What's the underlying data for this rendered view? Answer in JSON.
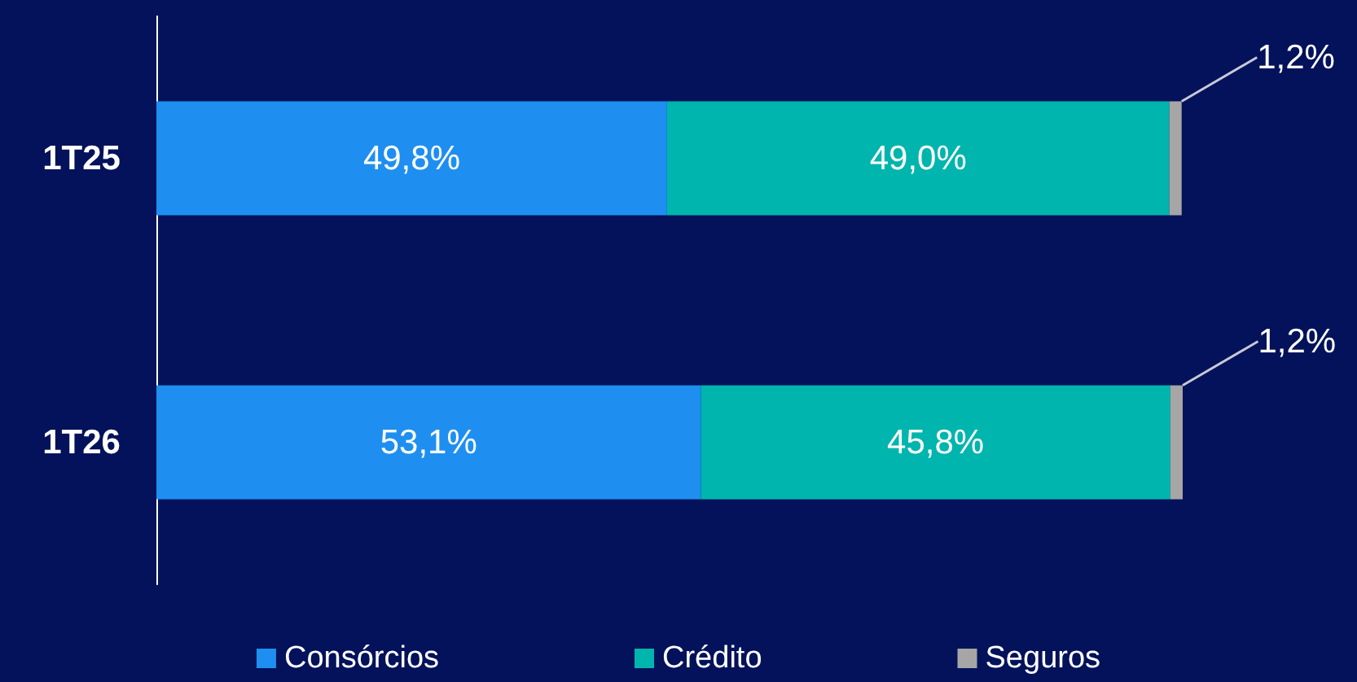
{
  "chart_data": {
    "type": "bar",
    "orientation": "horizontal",
    "stacked": true,
    "categories": [
      "1T25",
      "1T26"
    ],
    "series": [
      {
        "name": "Consórcios",
        "color": "#1e8ff0",
        "values": [
          49.8,
          53.1
        ],
        "value_labels": [
          "49,8%",
          "53,1%"
        ]
      },
      {
        "name": "Crédito",
        "color": "#00b5ad",
        "values": [
          49.0,
          45.8
        ],
        "value_labels": [
          "49,0%",
          "45,8%"
        ]
      },
      {
        "name": "Seguros",
        "color": "#a6a6a6",
        "values": [
          1.2,
          1.2
        ],
        "value_labels": [
          "1,2%",
          "1,2%"
        ]
      }
    ],
    "legend": "bottom"
  }
}
